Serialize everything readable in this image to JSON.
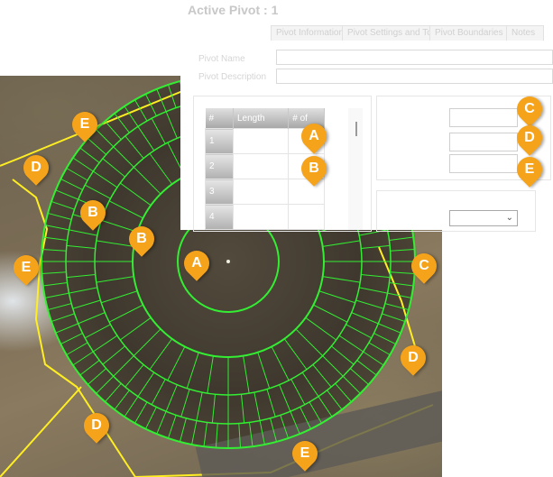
{
  "dialog": {
    "title": "Active Pivot : 1",
    "tabs": [
      "Pivot Information",
      "Pivot Settings and Tools",
      "Pivot Boundaries",
      "Notes"
    ],
    "fields": {
      "name_label": "Pivot Name",
      "description_label": "Pivot Description"
    },
    "grid": {
      "headers": [
        "#",
        "Length",
        "# of"
      ],
      "rows": [
        "1",
        "2",
        "3",
        "4"
      ]
    },
    "dropdown_value": ""
  },
  "callouts": {
    "dialog": [
      "A",
      "B",
      "C",
      "D",
      "E"
    ],
    "map": [
      "E",
      "D",
      "B",
      "B",
      "A",
      "E",
      "C",
      "D",
      "D",
      "E"
    ]
  },
  "colors": {
    "callout": "#f5a31b",
    "pivot_ring": "#33ee33",
    "boundary": "#ffee22"
  }
}
